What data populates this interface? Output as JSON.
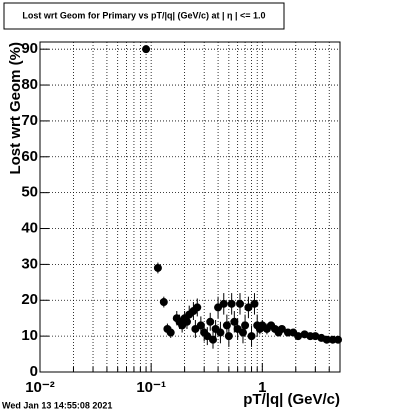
{
  "chart_data": {
    "type": "scatter",
    "title": "Lost wrt Geom for Primary vs pT/|q| (GeV/c) at | η | <= 1.0",
    "x_label": "pT/|q| (GeV/c)",
    "y_label": "Lost wrt Geom (%)",
    "timestamp": "Wed Jan 13 14:55:08 2021",
    "log_x": true,
    "grid": true,
    "color": "#000000",
    "xlim": [
      0.01,
      5
    ],
    "ylim": [
      0,
      92
    ],
    "xticks": [
      {
        "value": 0.01,
        "label": "10⁻²"
      },
      {
        "value": 0.1,
        "label": "10⁻¹"
      },
      1
    ],
    "xminorticks": [
      0.02,
      0.03,
      0.04,
      0.05,
      0.06,
      0.07,
      0.08,
      0.09,
      0.2,
      0.3,
      0.4,
      0.5,
      0.6,
      0.7,
      0.8,
      0.9,
      2,
      3,
      4
    ],
    "yticks": [
      0,
      10,
      20,
      30,
      40,
      50,
      60,
      70,
      80,
      90
    ],
    "x": [
      0.09,
      0.115,
      0.13,
      0.14,
      0.15,
      0.17,
      0.18,
      0.19,
      0.2,
      0.21,
      0.22,
      0.24,
      0.25,
      0.26,
      0.28,
      0.3,
      0.32,
      0.34,
      0.36,
      0.38,
      0.4,
      0.42,
      0.45,
      0.48,
      0.5,
      0.53,
      0.56,
      0.6,
      0.63,
      0.67,
      0.7,
      0.75,
      0.8,
      0.85,
      0.9,
      0.95,
      1.0,
      1.1,
      1.2,
      1.3,
      1.4,
      1.5,
      1.7,
      1.9,
      2.1,
      2.4,
      2.7,
      3.0,
      3.4,
      3.8,
      4.3,
      4.8
    ],
    "values": [
      90,
      29,
      19.5,
      12,
      11,
      15,
      14,
      13,
      15,
      14,
      16,
      17,
      12,
      18,
      13,
      11,
      10,
      14,
      9,
      12,
      18,
      11,
      19,
      13,
      10,
      19,
      14,
      12,
      19,
      11,
      13,
      18,
      10,
      19,
      13,
      12,
      13,
      12,
      13,
      12,
      11,
      12,
      11,
      11,
      10,
      10.5,
      10,
      10,
      9.5,
      9,
      9,
      9
    ],
    "errors": [
      1,
      1.5,
      1.5,
      1.5,
      1.5,
      2,
      2,
      2,
      2,
      2,
      2.5,
      2.5,
      2.5,
      2.5,
      2.5,
      2.5,
      2.5,
      2.5,
      2.5,
      2.5,
      3,
      3,
      3,
      3,
      3,
      3,
      3,
      3,
      3,
      3,
      3,
      3,
      3,
      3,
      3,
      1.5,
      1.5,
      1.5,
      1,
      1,
      1,
      1,
      1,
      1,
      1,
      1,
      1,
      1,
      1,
      1,
      1,
      1
    ]
  }
}
